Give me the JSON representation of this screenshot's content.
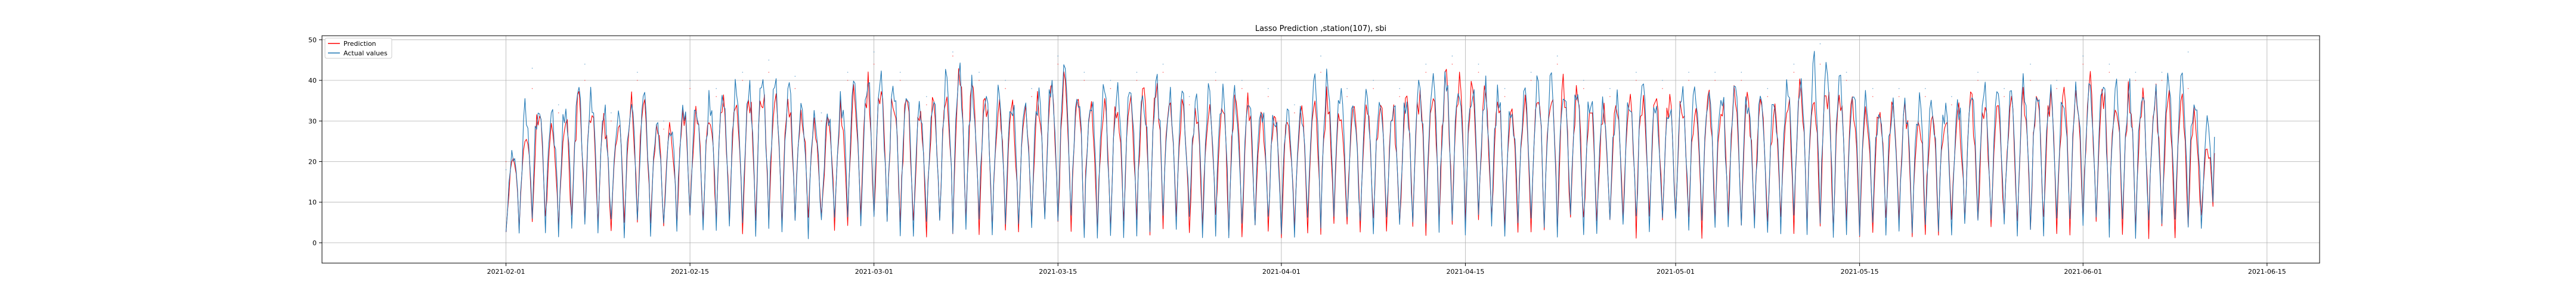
{
  "chart_data": {
    "type": "line",
    "title": "Lasso Prediction ,station(107), sbi",
    "xlabel": "",
    "ylabel": "",
    "x_range": [
      "2021-01-18",
      "2021-06-19"
    ],
    "data_x_range": [
      "2021-02-01",
      "2021-06-12"
    ],
    "xticks": [
      "2021-02-01",
      "2021-02-15",
      "2021-03-01",
      "2021-03-15",
      "2021-04-01",
      "2021-04-15",
      "2021-05-01",
      "2021-05-15",
      "2021-06-01",
      "2021-06-15"
    ],
    "ylim": [
      -5,
      51
    ],
    "yticks": [
      0,
      10,
      20,
      30,
      40,
      50
    ],
    "grid": true,
    "legend": "top-left",
    "series": [
      {
        "name": "Prediction",
        "color": "#ff0000",
        "sampling": "daily max/min envelope (approximate)",
        "x": [
          "2021-02-01",
          "2021-02-03",
          "2021-02-05",
          "2021-02-07",
          "2021-02-09",
          "2021-02-11",
          "2021-02-13",
          "2021-02-15",
          "2021-02-17",
          "2021-02-19",
          "2021-02-21",
          "2021-02-23",
          "2021-02-25",
          "2021-02-27",
          "2021-03-01",
          "2021-03-03",
          "2021-03-05",
          "2021-03-07",
          "2021-03-09",
          "2021-03-11",
          "2021-03-13",
          "2021-03-15",
          "2021-03-17",
          "2021-03-19",
          "2021-03-21",
          "2021-03-23",
          "2021-03-25",
          "2021-03-27",
          "2021-03-29",
          "2021-03-31",
          "2021-04-02",
          "2021-04-04",
          "2021-04-06",
          "2021-04-08",
          "2021-04-10",
          "2021-04-12",
          "2021-04-14",
          "2021-04-16",
          "2021-04-18",
          "2021-04-20",
          "2021-04-22",
          "2021-04-24",
          "2021-04-26",
          "2021-04-28",
          "2021-04-30",
          "2021-05-02",
          "2021-05-04",
          "2021-05-06",
          "2021-05-08",
          "2021-05-10",
          "2021-05-12",
          "2021-05-14",
          "2021-05-16",
          "2021-05-18",
          "2021-05-20",
          "2021-05-22",
          "2021-05-24",
          "2021-05-26",
          "2021-05-28",
          "2021-05-30",
          "2021-06-01",
          "2021-06-03",
          "2021-06-05",
          "2021-06-07",
          "2021-06-09",
          "2021-06-11"
        ],
        "values": [
          20,
          38,
          32,
          40,
          30,
          40,
          28,
          38,
          36,
          40,
          42,
          38,
          30,
          40,
          44,
          40,
          34,
          46,
          40,
          38,
          36,
          44,
          40,
          38,
          40,
          42,
          34,
          40,
          38,
          36,
          32,
          42,
          36,
          38,
          36,
          42,
          44,
          42,
          36,
          40,
          44,
          38,
          36,
          40,
          38,
          40,
          40,
          40,
          36,
          42,
          44,
          40,
          36,
          36,
          36,
          34,
          40,
          36,
          40,
          38,
          44,
          42,
          40,
          40,
          38,
          22
        ]
      },
      {
        "name": "Actual values",
        "color": "#1f77b4",
        "sampling": "daily max/min envelope (approximate)",
        "x": [
          "2021-02-01",
          "2021-02-03",
          "2021-02-05",
          "2021-02-07",
          "2021-02-09",
          "2021-02-11",
          "2021-02-13",
          "2021-02-15",
          "2021-02-17",
          "2021-02-19",
          "2021-02-21",
          "2021-02-23",
          "2021-02-25",
          "2021-02-27",
          "2021-03-01",
          "2021-03-03",
          "2021-03-05",
          "2021-03-07",
          "2021-03-09",
          "2021-03-11",
          "2021-03-13",
          "2021-03-15",
          "2021-03-17",
          "2021-03-19",
          "2021-03-21",
          "2021-03-23",
          "2021-03-25",
          "2021-03-27",
          "2021-03-29",
          "2021-03-31",
          "2021-04-02",
          "2021-04-04",
          "2021-04-06",
          "2021-04-08",
          "2021-04-10",
          "2021-04-12",
          "2021-04-14",
          "2021-04-16",
          "2021-04-18",
          "2021-04-20",
          "2021-04-22",
          "2021-04-24",
          "2021-04-26",
          "2021-04-28",
          "2021-04-30",
          "2021-05-02",
          "2021-05-04",
          "2021-05-06",
          "2021-05-08",
          "2021-05-10",
          "2021-05-12",
          "2021-05-14",
          "2021-05-16",
          "2021-05-18",
          "2021-05-20",
          "2021-05-22",
          "2021-05-24",
          "2021-05-26",
          "2021-05-28",
          "2021-05-30",
          "2021-06-01",
          "2021-06-03",
          "2021-06-05",
          "2021-06-07",
          "2021-06-09",
          "2021-06-11"
        ],
        "values": [
          18,
          43,
          34,
          44,
          32,
          42,
          30,
          40,
          38,
          42,
          45,
          41,
          32,
          42,
          47,
          42,
          36,
          47,
          42,
          40,
          38,
          46,
          42,
          40,
          42,
          44,
          36,
          42,
          40,
          38,
          34,
          46,
          38,
          40,
          38,
          44,
          46,
          44,
          38,
          42,
          46,
          40,
          38,
          42,
          40,
          42,
          42,
          42,
          38,
          44,
          49,
          42,
          38,
          38,
          38,
          36,
          42,
          38,
          44,
          40,
          46,
          44,
          42,
          42,
          47,
          26
        ]
      }
    ]
  }
}
